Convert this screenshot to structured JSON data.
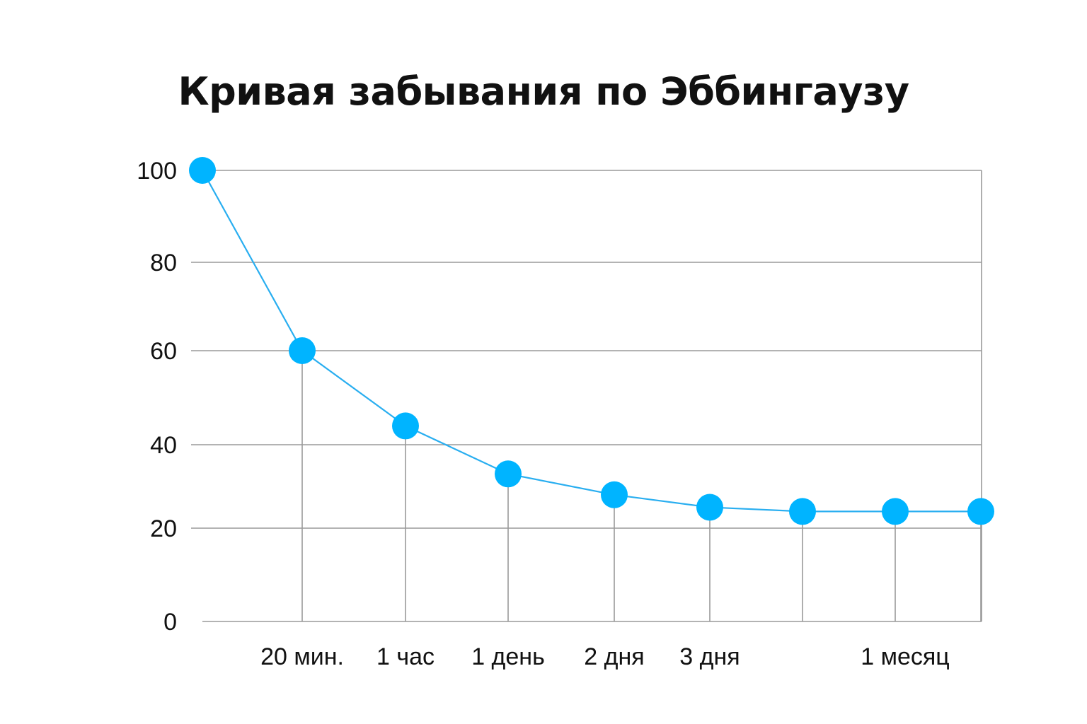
{
  "chart_data": {
    "type": "line",
    "title": "Кривая забывания по Эббингаузу",
    "xlabel": "",
    "ylabel": "",
    "ylim": [
      0,
      100
    ],
    "yticks": [
      0,
      20,
      40,
      60,
      80,
      100
    ],
    "grid": true,
    "x_labels": [
      "",
      "20 мин.",
      "1 час",
      "1 день",
      "2 дня",
      "3 дня",
      "",
      "1 месяц",
      ""
    ],
    "series": [
      {
        "values": [
          100,
          60,
          44,
          33,
          28,
          25,
          24,
          24,
          24
        ],
        "color": "#00b4ff"
      }
    ]
  },
  "colors": {
    "point": "#00b4ff",
    "line": "#29aef0",
    "grid": "#9a9a9a",
    "text": "#111111"
  }
}
